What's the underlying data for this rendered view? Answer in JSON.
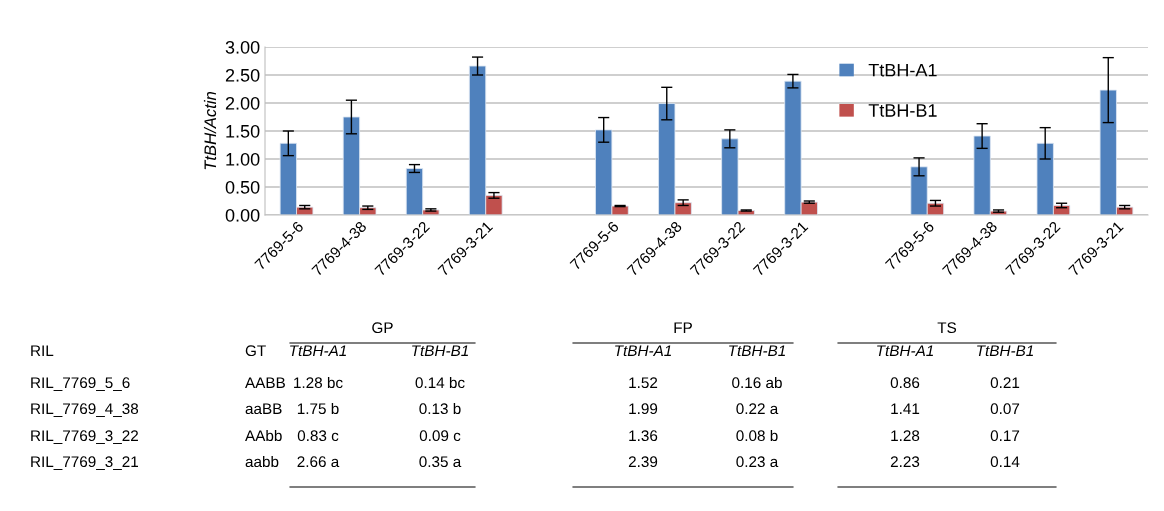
{
  "chart_data": {
    "type": "bar",
    "ylabel": "TtBH/Actin",
    "categories": [
      "7769-5-6",
      "7769-4-38",
      "7769-3-22",
      "7769-3-21",
      null,
      "7769-5-6",
      "7769-4-38",
      "7769-3-22",
      "7769-3-21",
      null,
      "7769-5-6",
      "7769-4-38",
      "7769-3-22",
      "7769-3-21"
    ],
    "series": [
      {
        "name": "TtBH-A1",
        "color": "#4f81bd",
        "values": [
          1.28,
          1.75,
          0.83,
          2.66,
          null,
          1.52,
          1.99,
          1.36,
          2.39,
          null,
          0.86,
          1.41,
          1.28,
          2.23
        ],
        "errors": [
          0.22,
          0.3,
          0.07,
          0.16,
          null,
          0.22,
          0.29,
          0.16,
          0.12,
          null,
          0.16,
          0.22,
          0.28,
          0.58
        ]
      },
      {
        "name": "TtBH-B1",
        "color": "#c0504d",
        "values": [
          0.14,
          0.13,
          0.09,
          0.35,
          null,
          0.16,
          0.22,
          0.08,
          0.23,
          null,
          0.21,
          0.07,
          0.17,
          0.14
        ],
        "errors": [
          0.03,
          0.03,
          0.02,
          0.05,
          null,
          0.01,
          0.05,
          0.01,
          0.02,
          null,
          0.05,
          0.02,
          0.04,
          0.03
        ]
      }
    ],
    "ylim": [
      0,
      3
    ],
    "yticks": [
      {
        "value": 0,
        "label": "0.00"
      },
      {
        "value": 0.5,
        "label": "0.50"
      },
      {
        "value": 1,
        "label": "1.00"
      },
      {
        "value": 1.5,
        "label": "1.50"
      },
      {
        "value": 2,
        "label": "2.00"
      },
      {
        "value": 2.5,
        "label": "2.50"
      },
      {
        "value": 3,
        "label": "3.00"
      }
    ],
    "grid": "y",
    "legend": "top right",
    "annotations": [
      "GP",
      "FP",
      "TS",
      "RIL",
      "GT",
      "RIL_7769_5_6",
      "RIL_7769_4_38",
      "RIL_7769_3_22",
      "RIL_7769_3_21",
      "AABB",
      "aaBB",
      "AAbb",
      "aabb",
      "1.28 bc",
      "0.14 bc",
      "1.52",
      "0.16 ab",
      "0.86",
      "0.21",
      "1.75 b",
      "0.13 b",
      "1.99",
      "0.22 a",
      "1.41",
      "0.07",
      "0.83 c",
      "0.09 c",
      "1.36",
      "0.08 b",
      "1.28",
      "0.17",
      "2.66 a",
      "0.35 a",
      "2.39",
      "0.23 a",
      "2.23",
      "0.14"
    ]
  }
}
